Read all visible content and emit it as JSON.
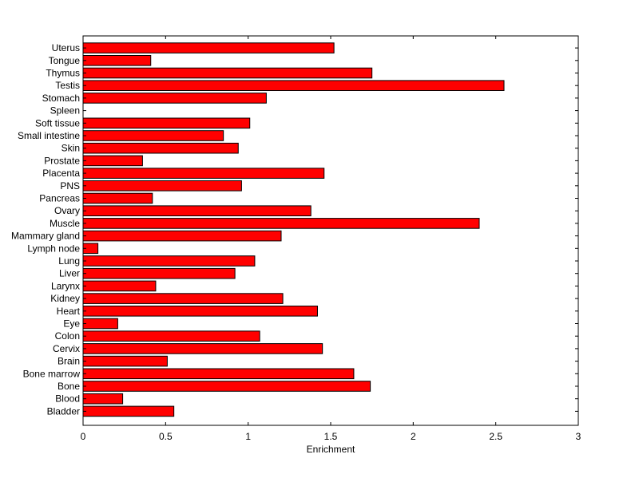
{
  "chart_data": {
    "type": "bar",
    "orientation": "horizontal",
    "title": "",
    "xlabel": "Enrichment",
    "ylabel": "",
    "xlim": [
      0,
      3
    ],
    "xticks": [
      0,
      0.5,
      1,
      1.5,
      2,
      2.5,
      3
    ],
    "xtick_labels": [
      "0",
      "0.5",
      "1",
      "1.5",
      "2",
      "2.5",
      "3"
    ],
    "grid": false,
    "legend": "none",
    "bar_color": "#ff0000",
    "edge_color": "#000000",
    "categories": [
      "Uterus",
      "Tongue",
      "Thymus",
      "Testis",
      "Stomach",
      "Spleen",
      "Soft tissue",
      "Small intestine",
      "Skin",
      "Prostate",
      "Placenta",
      "PNS",
      "Pancreas",
      "Ovary",
      "Muscle",
      "Mammary gland",
      "Lymph node",
      "Lung",
      "Liver",
      "Larynx",
      "Kidney",
      "Heart",
      "Eye",
      "Colon",
      "Cervix",
      "Brain",
      "Bone marrow",
      "Bone",
      "Blood",
      "Bladder"
    ],
    "values": [
      1.52,
      0.41,
      1.75,
      2.55,
      1.11,
      0.0,
      1.01,
      0.85,
      0.94,
      0.36,
      1.46,
      0.96,
      0.42,
      1.38,
      2.4,
      1.2,
      0.09,
      1.04,
      0.92,
      0.44,
      1.21,
      1.42,
      0.21,
      1.07,
      1.45,
      0.51,
      1.64,
      1.74,
      0.24,
      0.55
    ]
  }
}
